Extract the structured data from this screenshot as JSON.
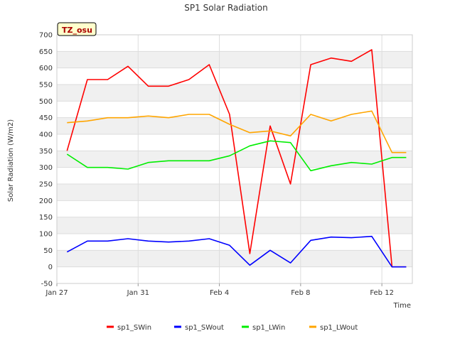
{
  "chart_data": {
    "type": "line",
    "title": "SP1 Solar Radiation",
    "xlabel": "Time",
    "ylabel": "Solar Radiation (W/m2)",
    "tag": "TZ_osu",
    "ylim": [
      -50,
      700
    ],
    "yticks": [
      -50,
      0,
      50,
      100,
      150,
      200,
      250,
      300,
      350,
      400,
      450,
      500,
      550,
      600,
      650,
      700
    ],
    "xlim_days": [
      0,
      17.5
    ],
    "xticks": [
      {
        "day": 0,
        "label": "Jan 27"
      },
      {
        "day": 4,
        "label": "Jan 31"
      },
      {
        "day": 8,
        "label": "Feb 4"
      },
      {
        "day": 12,
        "label": "Feb 8"
      },
      {
        "day": 16,
        "label": "Feb 12"
      }
    ],
    "grid": true,
    "legend_position": "bottom",
    "days": [
      0.5,
      1.5,
      2.5,
      3.5,
      4.5,
      5.5,
      6.5,
      7.5,
      8.5,
      9.5,
      10.5,
      11.5,
      12.5,
      13.5,
      14.5,
      15.5,
      16.5,
      17.2
    ],
    "series": [
      {
        "name": "sp1_SWin",
        "color": "#ff0000",
        "values": [
          350,
          565,
          565,
          605,
          545,
          545,
          565,
          610,
          460,
          40,
          425,
          250,
          610,
          630,
          620,
          655,
          0,
          0
        ]
      },
      {
        "name": "sp1_SWout",
        "color": "#0000ff",
        "values": [
          45,
          78,
          78,
          85,
          78,
          75,
          78,
          85,
          65,
          5,
          50,
          12,
          80,
          90,
          88,
          92,
          0,
          0
        ]
      },
      {
        "name": "sp1_LWin",
        "color": "#00ee00",
        "values": [
          340,
          300,
          300,
          295,
          315,
          320,
          320,
          320,
          335,
          365,
          380,
          375,
          290,
          305,
          315,
          310,
          330,
          330
        ]
      },
      {
        "name": "sp1_LWout",
        "color": "#ffa500",
        "values": [
          435,
          440,
          450,
          450,
          455,
          450,
          460,
          460,
          430,
          405,
          410,
          395,
          460,
          440,
          460,
          470,
          345,
          345
        ]
      }
    ]
  }
}
